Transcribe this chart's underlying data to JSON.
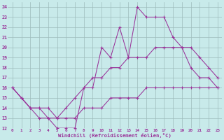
{
  "bg_color": "#c8eaea",
  "line_color": "#993399",
  "grid_color": "#9dbcbc",
  "xlabel": "Windchill (Refroidissement éolien,°C)",
  "xlim": [
    -0.5,
    23.5
  ],
  "ylim": [
    12,
    24.5
  ],
  "xticks": [
    0,
    1,
    2,
    3,
    4,
    5,
    6,
    7,
    8,
    9,
    10,
    11,
    12,
    13,
    14,
    15,
    16,
    17,
    18,
    19,
    20,
    21,
    22,
    23
  ],
  "yticks": [
    12,
    13,
    14,
    15,
    16,
    17,
    18,
    19,
    20,
    21,
    22,
    23,
    24
  ],
  "series": [
    {
      "x": [
        0,
        1,
        2,
        3,
        4,
        5,
        6,
        7,
        8,
        9,
        10,
        11,
        12,
        13,
        14,
        15,
        16,
        17,
        18,
        19,
        20,
        21,
        22,
        23
      ],
      "y": [
        16,
        15,
        14,
        13,
        13,
        12,
        12,
        12,
        16,
        16,
        20,
        19,
        22,
        19,
        24,
        23,
        23,
        23,
        21,
        20,
        18,
        17,
        17,
        16
      ]
    },
    {
      "x": [
        0,
        1,
        2,
        3,
        4,
        5,
        6,
        7,
        8,
        9,
        10,
        11,
        12,
        13,
        14,
        15,
        16,
        17,
        18,
        19,
        20,
        21,
        22,
        23
      ],
      "y": [
        16,
        15,
        14,
        14,
        14,
        13,
        14,
        15,
        16,
        17,
        17,
        18,
        18,
        19,
        19,
        19,
        20,
        20,
        20,
        20,
        20,
        19,
        18,
        17
      ]
    },
    {
      "x": [
        0,
        1,
        2,
        3,
        4,
        5,
        6,
        7,
        8,
        9,
        10,
        11,
        12,
        13,
        14,
        15,
        16,
        17,
        18,
        19,
        20,
        21,
        22,
        23
      ],
      "y": [
        16,
        15,
        14,
        14,
        13,
        13,
        13,
        13,
        14,
        14,
        14,
        15,
        15,
        15,
        15,
        16,
        16,
        16,
        16,
        16,
        16,
        16,
        16,
        16
      ]
    }
  ]
}
